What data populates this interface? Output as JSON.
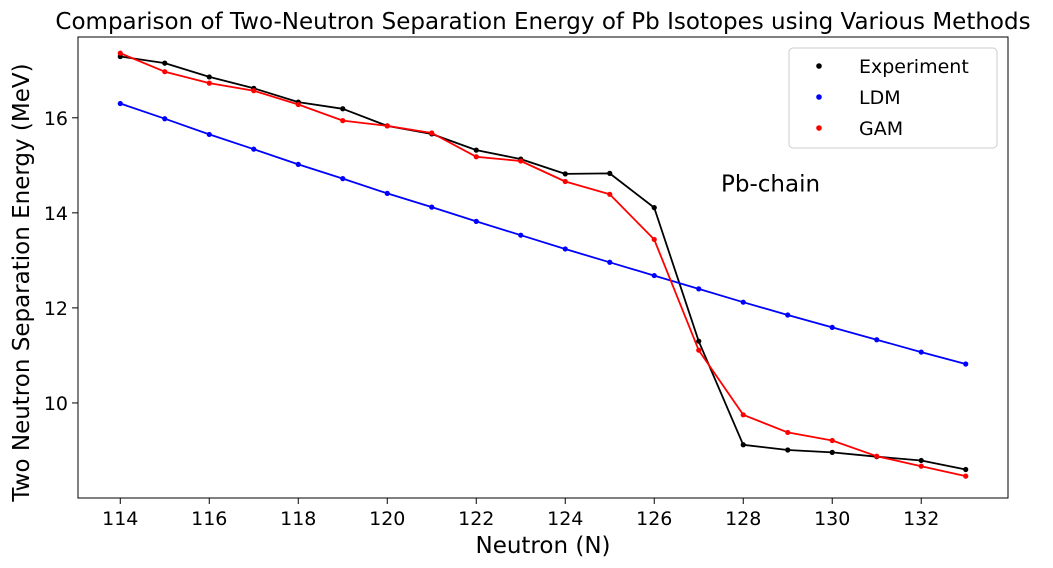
{
  "chart_data": {
    "type": "line",
    "title": "Comparison of Two-Neutron Separation Energy of Pb Isotopes using Various Methods",
    "xlabel": "Neutron (N)",
    "ylabel": "Two Neutron Separation Energy (MeV)",
    "xlim": [
      113.05,
      133.95
    ],
    "ylim": [
      8.0,
      17.7
    ],
    "xticks": [
      114,
      116,
      118,
      120,
      122,
      124,
      126,
      128,
      130,
      132
    ],
    "yticks": [
      10,
      12,
      14,
      16
    ],
    "grid": false,
    "legend_position": "top-right",
    "annotation": "Pb-chain",
    "annotation_at": [
      127.5,
      14.45
    ],
    "x": [
      114,
      115,
      116,
      117,
      118,
      119,
      120,
      121,
      122,
      123,
      124,
      125,
      126,
      127,
      128,
      129,
      130,
      131,
      132,
      133
    ],
    "series": [
      {
        "name": "Experiment",
        "color": "#000000",
        "values": [
          17.29,
          17.15,
          16.86,
          16.62,
          16.33,
          16.19,
          15.83,
          15.66,
          15.32,
          15.13,
          14.82,
          14.83,
          14.11,
          11.3,
          9.12,
          9.01,
          8.96,
          8.87,
          8.79,
          8.6
        ]
      },
      {
        "name": "LDM",
        "color": "#0000ff",
        "values": [
          16.3,
          15.98,
          15.65,
          15.34,
          15.02,
          14.72,
          14.41,
          14.12,
          13.82,
          13.53,
          13.24,
          12.96,
          12.68,
          12.4,
          12.12,
          11.85,
          11.59,
          11.33,
          11.07,
          10.82
        ]
      },
      {
        "name": "GAM",
        "color": "#ff0000",
        "values": [
          17.36,
          16.97,
          16.73,
          16.57,
          16.28,
          15.94,
          15.83,
          15.68,
          15.18,
          15.09,
          14.66,
          14.39,
          13.44,
          11.11,
          9.75,
          9.38,
          9.21,
          8.88,
          8.67,
          8.46
        ]
      }
    ]
  }
}
